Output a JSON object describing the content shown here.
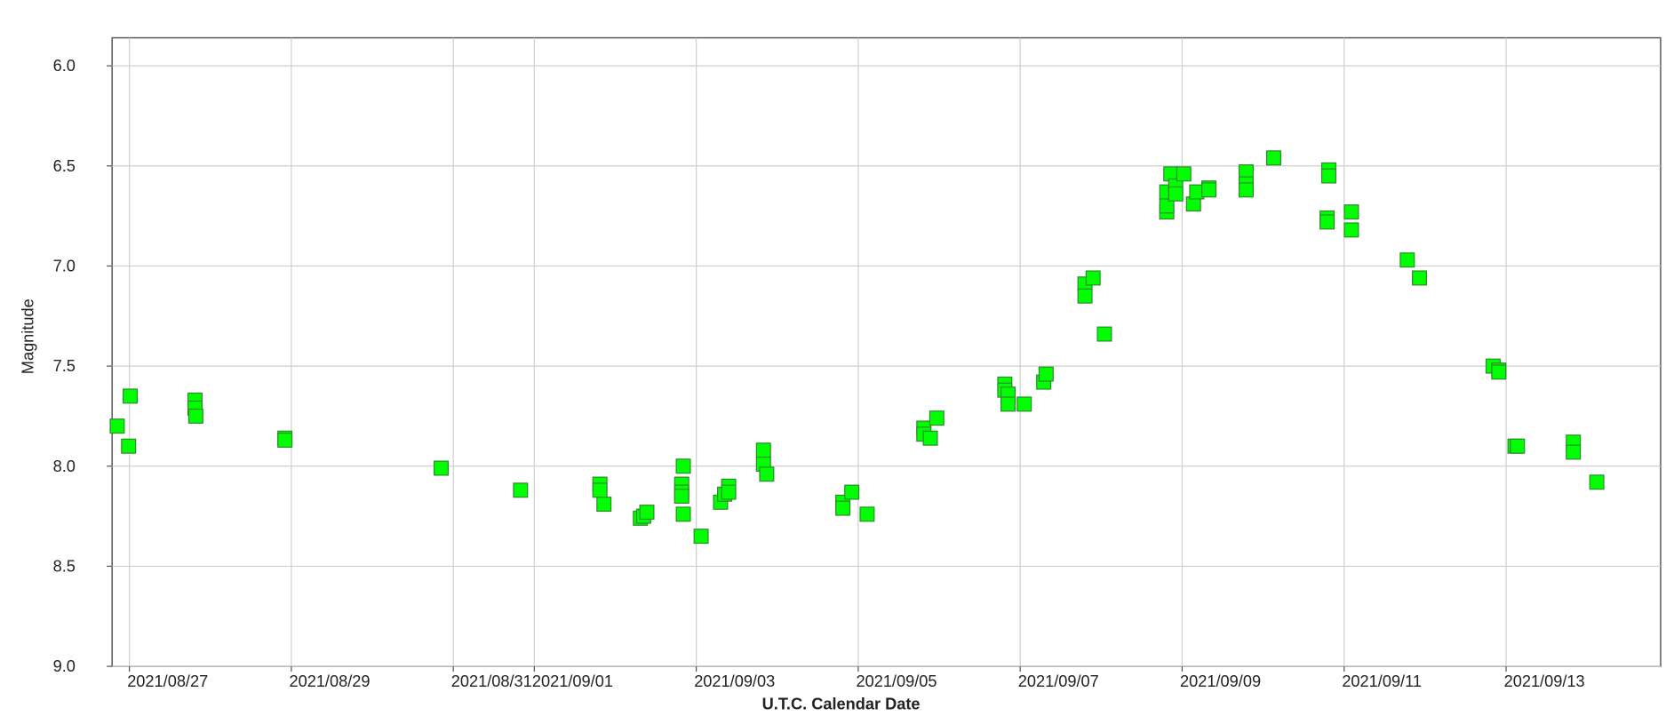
{
  "chart_data": {
    "type": "scatter",
    "x_label": "U.T.C. Calendar Date",
    "y_label": "Magnitude",
    "color": "#00ff00",
    "edge_color": "#2e8b2e",
    "grid": true,
    "xlim": [
      2459453.287,
      2459472.408
    ],
    "xticks": [
      {
        "value": 2459453.5,
        "label": "2021/08/27"
      },
      {
        "value": 2459455.5,
        "label": "2021/08/29"
      },
      {
        "value": 2459457.5,
        "label": "2021/08/31"
      },
      {
        "value": 2459458.5,
        "label": "2021/09/01"
      },
      {
        "value": 2459460.5,
        "label": "2021/09/03"
      },
      {
        "value": 2459462.5,
        "label": "2021/09/05"
      },
      {
        "value": 2459464.5,
        "label": "2021/09/07"
      },
      {
        "value": 2459466.5,
        "label": "2021/09/09"
      },
      {
        "value": 2459468.5,
        "label": "2021/09/11"
      },
      {
        "value": 2459470.5,
        "label": "2021/09/13"
      }
    ],
    "ylim": [
      9.0,
      5.86
    ],
    "yticks": [
      {
        "value": 6,
        "label": "6.0"
      },
      6.5,
      {
        "value": 7,
        "label": "7.0"
      },
      7.5,
      {
        "value": 8,
        "label": "8.0"
      },
      8.5,
      {
        "value": 9,
        "label": "9.0"
      }
    ],
    "x": [
      2459453.35,
      2459453.49,
      2459453.51,
      2459454.31,
      2459454.31,
      2459454.32,
      2459455.42,
      2459455.42,
      2459457.35,
      2459458.33,
      2459459.31,
      2459459.31,
      2459459.36,
      2459459.81,
      2459459.85,
      2459459.89,
      2459460.32,
      2459460.32,
      2459460.32,
      2459460.34,
      2459460.34,
      2459460.56,
      2459460.8,
      2459460.85,
      2459460.9,
      2459460.9,
      2459461.33,
      2459461.33,
      2459461.37,
      2459462.31,
      2459462.31,
      2459462.42,
      2459462.61,
      2459463.31,
      2459463.31,
      2459463.39,
      2459463.47,
      2459464.31,
      2459464.31,
      2459464.35,
      2459464.35,
      2459464.55,
      2459464.79,
      2459464.82,
      2459465.3,
      2459465.3,
      2459465.4,
      2459465.54,
      2459466.31,
      2459466.31,
      2459466.31,
      2459466.36,
      2459466.42,
      2459466.42,
      2459466.52,
      2459466.64,
      2459466.68,
      2459466.83,
      2459466.83,
      2459467.29,
      2459467.29,
      2459467.29,
      2459467.63,
      2459468.31,
      2459468.31,
      2459468.29,
      2459468.29,
      2459468.59,
      2459468.59,
      2459469.28,
      2459469.43,
      2459470.34,
      2459470.41,
      2459470.41,
      2459470.61,
      2459470.64,
      2459471.33,
      2459471.33,
      2459471.62
    ],
    "values": [
      7.8,
      7.9,
      7.65,
      7.67,
      7.71,
      7.75,
      7.86,
      7.87,
      8.01,
      8.12,
      8.09,
      8.12,
      8.19,
      8.26,
      8.25,
      8.23,
      8.09,
      8.13,
      8.15,
      8.0,
      8.24,
      8.35,
      8.18,
      8.14,
      8.1,
      8.13,
      7.92,
      7.99,
      8.04,
      8.18,
      8.21,
      8.13,
      8.24,
      7.81,
      7.84,
      7.86,
      7.76,
      7.59,
      7.62,
      7.64,
      7.69,
      7.69,
      7.58,
      7.54,
      7.09,
      7.15,
      7.06,
      7.34,
      6.73,
      6.7,
      6.63,
      6.54,
      6.6,
      6.64,
      6.54,
      6.69,
      6.63,
      6.61,
      6.62,
      6.53,
      6.59,
      6.62,
      6.46,
      6.52,
      6.55,
      6.76,
      6.78,
      6.73,
      6.82,
      6.97,
      7.06,
      7.5,
      7.52,
      7.53,
      7.9,
      7.9,
      7.88,
      7.93,
      8.08
    ]
  }
}
